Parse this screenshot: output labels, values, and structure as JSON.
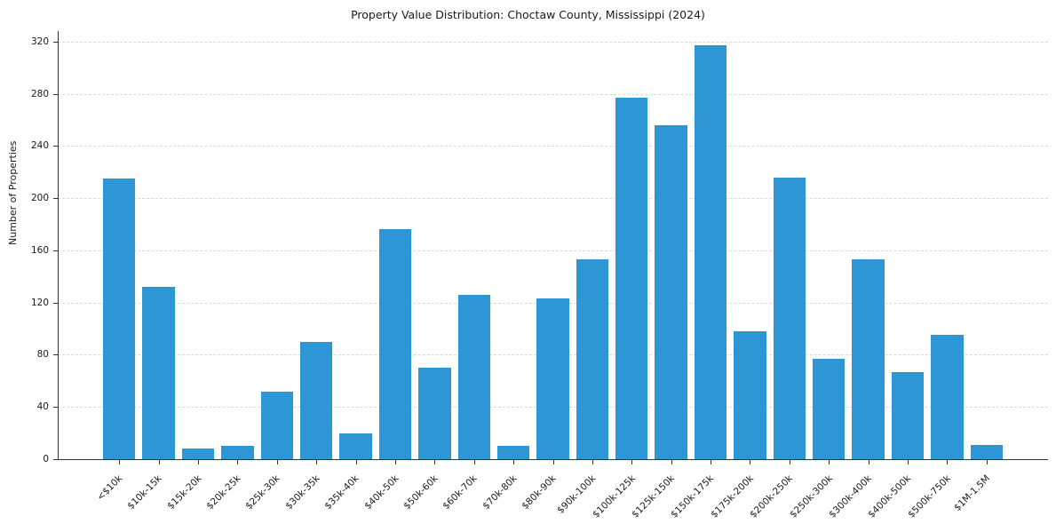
{
  "chart_data": {
    "type": "bar",
    "title": "Property Value Distribution: Choctaw County, Mississippi (2024)",
    "xlabel": "",
    "ylabel": "Number of Properties",
    "categories": [
      "<$10k",
      "$10k-15k",
      "$15k-20k",
      "$20k-25k",
      "$25k-30k",
      "$30k-35k",
      "$35k-40k",
      "$40k-50k",
      "$50k-60k",
      "$60k-70k",
      "$70k-80k",
      "$80k-90k",
      "$90k-100k",
      "$100k-125k",
      "$125k-150k",
      "$150k-175k",
      "$175k-200k",
      "$200k-250k",
      "$250k-300k",
      "$300k-400k",
      "$400k-500k",
      "$500k-750k",
      "$1M-1.5M"
    ],
    "values": [
      215,
      132,
      8,
      10,
      52,
      90,
      20,
      176,
      70,
      126,
      10,
      123,
      153,
      277,
      256,
      317,
      98,
      216,
      77,
      153,
      67,
      95,
      11
    ],
    "yticks": [
      0,
      40,
      80,
      120,
      160,
      200,
      240,
      280,
      320
    ],
    "ylim": [
      0,
      328
    ],
    "bar_color": "#2e96d4",
    "grid": "horizontal-dashed",
    "legend": "none"
  }
}
